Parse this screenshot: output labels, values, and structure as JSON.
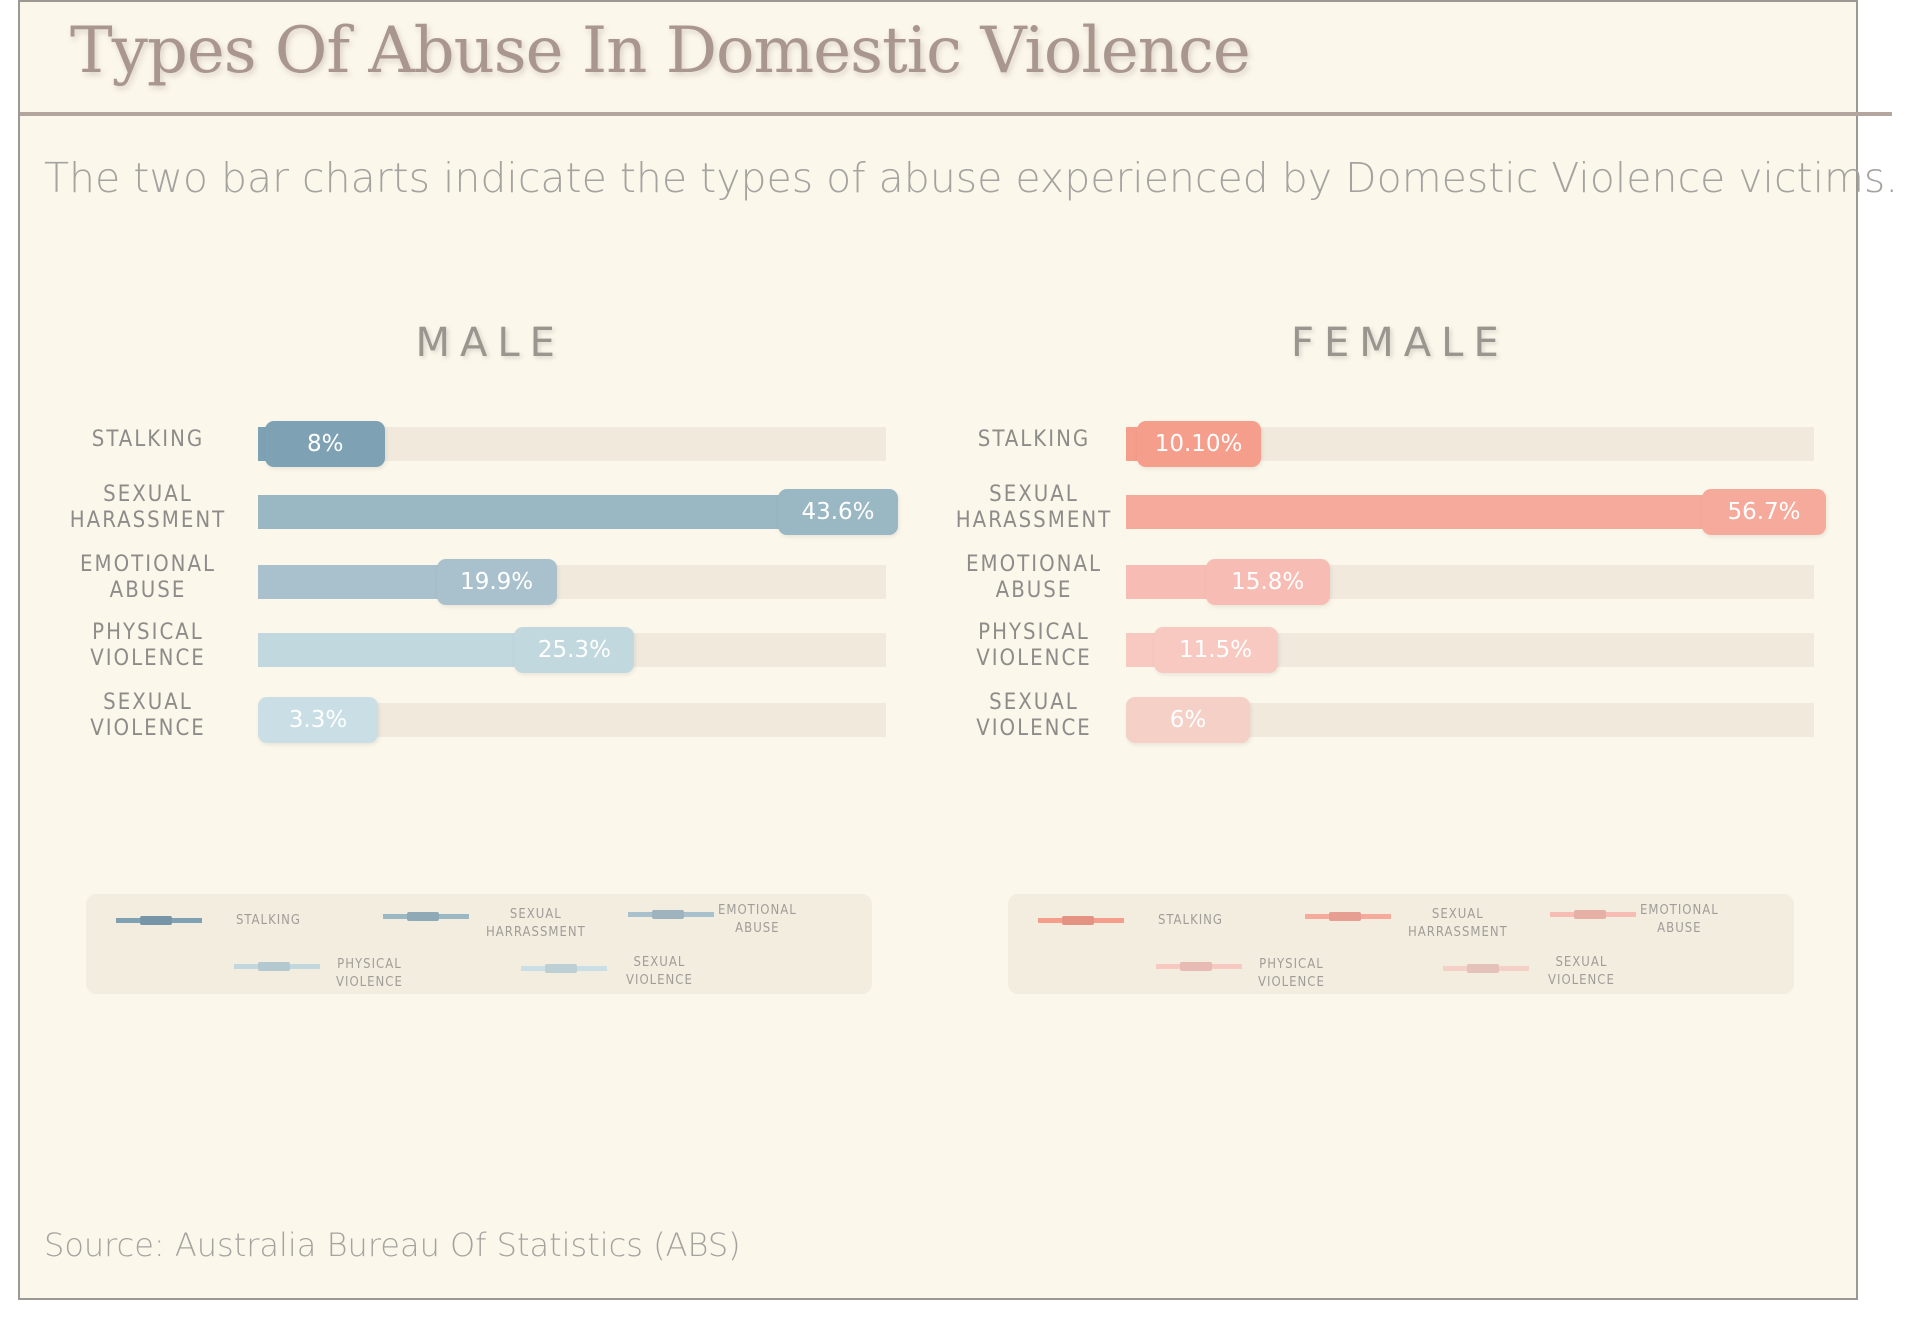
{
  "title": "Types Of Abuse In Domestic Violence",
  "subtitle": "The two bar charts indicate the types of abuse experienced by Domestic Violence victims.",
  "source": "Source: Australia Bureau Of Statistics (ABS)",
  "chart_data": [
    {
      "type": "bar",
      "orientation": "horizontal",
      "title": "MALE",
      "categories": [
        "STALKING",
        "SEXUAL HARASSMENT",
        "EMOTIONAL ABUSE",
        "PHYSICAL VIOLENCE",
        "SEXUAL VIOLENCE"
      ],
      "category_lines": [
        [
          "STALKING"
        ],
        [
          "SEXUAL",
          "HARASSMENT"
        ],
        [
          "EMOTIONAL",
          "ABUSE"
        ],
        [
          "PHYSICAL",
          "VIOLENCE"
        ],
        [
          "SEXUAL",
          "VIOLENCE"
        ]
      ],
      "values": [
        8,
        43.6,
        19.9,
        25.3,
        3.3
      ],
      "value_labels": [
        "8%",
        "43.6%",
        "19.9%",
        "25.3%",
        "3.3%"
      ],
      "xlim": [
        0,
        43.6
      ],
      "colors": [
        "#7fa1b4",
        "#9ab7c4",
        "#a9c1cc",
        "#c1d8df",
        "#cadfe5"
      ],
      "legend": {
        "placement": "bottom",
        "entries": [
          [
            "STALKING"
          ],
          [
            "SEXUAL",
            "HARRASSMENT"
          ],
          [
            "EMOTIONAL",
            "ABUSE"
          ],
          [
            "PHYSICAL",
            "VIOLENCE"
          ],
          [
            "SEXUAL",
            "VIOLENCE"
          ]
        ]
      }
    },
    {
      "type": "bar",
      "orientation": "horizontal",
      "title": "FEMALE",
      "categories": [
        "STALKING",
        "SEXUAL HARASSMENT",
        "EMOTIONAL ABUSE",
        "PHYSICAL VIOLENCE",
        "SEXUAL VIOLENCE"
      ],
      "category_lines": [
        [
          "STALKING"
        ],
        [
          "SEXUAL",
          "HARASSMENT"
        ],
        [
          "EMOTIONAL",
          "ABUSE"
        ],
        [
          "PHYSICAL",
          "VIOLENCE"
        ],
        [
          "SEXUAL",
          "VIOLENCE"
        ]
      ],
      "values": [
        10.1,
        56.7,
        15.8,
        11.5,
        6
      ],
      "value_labels": [
        "10.10%",
        "56.7%",
        "15.8%",
        "11.5%",
        "6%"
      ],
      "xlim": [
        0,
        56.7
      ],
      "colors": [
        "#f59e8c",
        "#f6aa9c",
        "#f7bdb4",
        "#f8c9c1",
        "#f5d0c7"
      ],
      "legend": {
        "placement": "bottom",
        "entries": [
          [
            "STALKING"
          ],
          [
            "SEXUAL",
            "HARRASSMENT"
          ],
          [
            "EMOTIONAL",
            "ABUSE"
          ],
          [
            "PHYSICAL",
            "VIOLENCE"
          ],
          [
            "SEXUAL",
            "VIOLENCE"
          ]
        ]
      }
    }
  ]
}
